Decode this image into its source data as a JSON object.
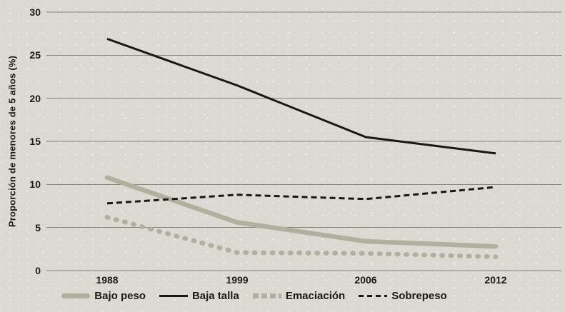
{
  "figure": {
    "background_color": "#dbd9d1",
    "text_color": "#1b1a17",
    "gridline_color": "#85837e"
  },
  "chart_data": {
    "type": "line",
    "title": "",
    "xlabel": "",
    "ylabel": "Proporción de menores de 5 años (%)",
    "categories": [
      "1988",
      "1999",
      "2006",
      "2012"
    ],
    "y_ticks": [
      0,
      5,
      10,
      15,
      20,
      25,
      30
    ],
    "ylim": [
      0,
      30
    ],
    "grid": true,
    "legend_position": "bottom",
    "series": [
      {
        "name": "Bajo peso",
        "values": [
          10.8,
          5.6,
          3.4,
          2.8
        ],
        "color": "#b3af9e",
        "style": "solid",
        "thickness": "thick"
      },
      {
        "name": "Baja talla",
        "values": [
          26.9,
          21.5,
          15.5,
          13.6
        ],
        "color": "#181713",
        "style": "solid",
        "thickness": "thin"
      },
      {
        "name": "Emaciación",
        "values": [
          6.2,
          2.1,
          2.0,
          1.6
        ],
        "color": "#b3af9e",
        "style": "dashed",
        "thickness": "thick"
      },
      {
        "name": "Sobrepeso",
        "values": [
          7.8,
          8.8,
          8.3,
          9.7
        ],
        "color": "#181713",
        "style": "dashed",
        "thickness": "thin"
      }
    ]
  }
}
